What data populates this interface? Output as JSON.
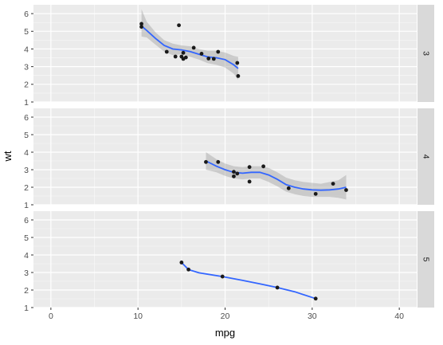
{
  "chart_data": {
    "type": "scatter",
    "xlabel": "mpg",
    "ylabel": "wt",
    "xlim": [
      -2,
      42
    ],
    "ylim": [
      1,
      6.5
    ],
    "x_ticks": [
      0,
      10,
      20,
      30,
      40
    ],
    "y_ticks": [
      1,
      2,
      3,
      4,
      5,
      6
    ],
    "grid": true,
    "colors": {
      "panel_bg": "#ebebeb",
      "strip_bg": "#d9d9d9",
      "grid_major": "#ffffff",
      "point": "#1a1a1a",
      "smooth_line": "#3366ff",
      "ribbon": "#999999"
    },
    "facets": [
      {
        "strip": "3",
        "points": [
          {
            "x": 10.4,
            "y": 5.25
          },
          {
            "x": 10.4,
            "y": 5.42
          },
          {
            "x": 13.3,
            "y": 3.84
          },
          {
            "x": 14.3,
            "y": 3.57
          },
          {
            "x": 14.7,
            "y": 5.34
          },
          {
            "x": 15.0,
            "y": 3.57
          },
          {
            "x": 15.2,
            "y": 3.78
          },
          {
            "x": 15.2,
            "y": 3.44
          },
          {
            "x": 15.5,
            "y": 3.52
          },
          {
            "x": 16.4,
            "y": 4.07
          },
          {
            "x": 17.3,
            "y": 3.73
          },
          {
            "x": 18.1,
            "y": 3.46
          },
          {
            "x": 18.7,
            "y": 3.44
          },
          {
            "x": 19.2,
            "y": 3.84
          },
          {
            "x": 21.4,
            "y": 3.21
          },
          {
            "x": 21.5,
            "y": 2.47
          }
        ],
        "smooth": {
          "x": [
            10.4,
            11.0,
            12.0,
            13.0,
            14.0,
            15.0,
            16.0,
            17.0,
            18.0,
            19.0,
            20.0,
            21.0,
            21.5
          ],
          "y": [
            5.3,
            5.05,
            4.6,
            4.2,
            4.0,
            3.95,
            3.85,
            3.7,
            3.55,
            3.5,
            3.4,
            3.1,
            2.9
          ],
          "lower": [
            4.7,
            4.65,
            4.25,
            3.85,
            3.65,
            3.7,
            3.55,
            3.4,
            3.2,
            3.1,
            2.95,
            2.6,
            2.25
          ],
          "upper": [
            6.25,
            5.55,
            4.95,
            4.5,
            4.3,
            4.2,
            4.15,
            4.0,
            3.9,
            3.9,
            3.8,
            3.6,
            3.55
          ]
        }
      },
      {
        "strip": "4",
        "points": [
          {
            "x": 17.8,
            "y": 3.44
          },
          {
            "x": 19.2,
            "y": 3.44
          },
          {
            "x": 21.0,
            "y": 2.62
          },
          {
            "x": 21.0,
            "y": 2.88
          },
          {
            "x": 21.4,
            "y": 2.78
          },
          {
            "x": 22.8,
            "y": 2.32
          },
          {
            "x": 22.8,
            "y": 3.15
          },
          {
            "x": 24.4,
            "y": 3.19
          },
          {
            "x": 27.3,
            "y": 1.94
          },
          {
            "x": 30.4,
            "y": 1.62
          },
          {
            "x": 32.4,
            "y": 2.2
          },
          {
            "x": 33.9,
            "y": 1.84
          }
        ],
        "smooth": {
          "x": [
            17.8,
            19.0,
            20.0,
            21.0,
            22.0,
            23.0,
            24.0,
            25.0,
            26.0,
            27.0,
            28.0,
            29.0,
            30.0,
            31.0,
            32.0,
            33.0,
            33.9
          ],
          "y": [
            3.5,
            3.2,
            3.0,
            2.85,
            2.8,
            2.85,
            2.85,
            2.7,
            2.45,
            2.15,
            2.0,
            1.9,
            1.85,
            1.83,
            1.85,
            1.9,
            2.0
          ],
          "lower": [
            3.0,
            2.85,
            2.65,
            2.5,
            2.45,
            2.5,
            2.5,
            2.3,
            2.05,
            1.75,
            1.6,
            1.5,
            1.45,
            1.45,
            1.45,
            1.4,
            1.3
          ],
          "upper": [
            4.0,
            3.6,
            3.35,
            3.2,
            3.15,
            3.2,
            3.2,
            3.1,
            2.85,
            2.55,
            2.4,
            2.3,
            2.25,
            2.2,
            2.3,
            2.4,
            2.7
          ]
        }
      },
      {
        "strip": "5",
        "points": [
          {
            "x": 15.0,
            "y": 3.57
          },
          {
            "x": 15.8,
            "y": 3.17
          },
          {
            "x": 19.7,
            "y": 2.77
          },
          {
            "x": 26.0,
            "y": 2.14
          },
          {
            "x": 30.4,
            "y": 1.51
          }
        ],
        "smooth": {
          "x": [
            15.0,
            15.8,
            17.0,
            19.7,
            22.0,
            24.0,
            26.0,
            28.0,
            30.4
          ],
          "y": [
            3.57,
            3.17,
            2.98,
            2.77,
            2.55,
            2.35,
            2.14,
            1.9,
            1.51
          ],
          "lower": [],
          "upper": []
        }
      }
    ]
  }
}
